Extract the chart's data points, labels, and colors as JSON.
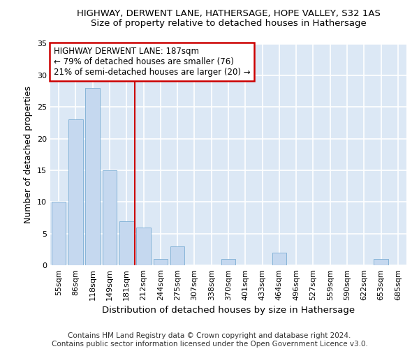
{
  "title": "HIGHWAY, DERWENT LANE, HATHERSAGE, HOPE VALLEY, S32 1AS",
  "subtitle": "Size of property relative to detached houses in Hathersage",
  "xlabel": "Distribution of detached houses by size in Hathersage",
  "ylabel": "Number of detached properties",
  "bar_labels": [
    "55sqm",
    "86sqm",
    "118sqm",
    "149sqm",
    "181sqm",
    "212sqm",
    "244sqm",
    "275sqm",
    "307sqm",
    "338sqm",
    "370sqm",
    "401sqm",
    "433sqm",
    "464sqm",
    "496sqm",
    "527sqm",
    "559sqm",
    "590sqm",
    "622sqm",
    "653sqm",
    "685sqm"
  ],
  "bar_values": [
    10,
    23,
    28,
    15,
    7,
    6,
    1,
    3,
    0,
    0,
    1,
    0,
    0,
    2,
    0,
    0,
    0,
    0,
    0,
    1,
    0
  ],
  "bar_color": "#c5d8ef",
  "bar_edge_color": "#7aadd4",
  "annotation_box_text": "HIGHWAY DERWENT LANE: 187sqm\n← 79% of detached houses are smaller (76)\n21% of semi-detached houses are larger (20) →",
  "annotation_box_color": "white",
  "annotation_box_edge_color": "#cc0000",
  "vline_color": "#cc0000",
  "vline_x": 4.5,
  "ylim": [
    0,
    35
  ],
  "yticks": [
    0,
    5,
    10,
    15,
    20,
    25,
    30,
    35
  ],
  "background_color": "#dce8f5",
  "grid_color": "white",
  "footer_line1": "Contains HM Land Registry data © Crown copyright and database right 2024.",
  "footer_line2": "Contains public sector information licensed under the Open Government Licence v3.0.",
  "title_fontsize": 9.5,
  "subtitle_fontsize": 9.5,
  "ylabel_fontsize": 9,
  "xlabel_fontsize": 9.5,
  "tick_fontsize": 8,
  "annotation_fontsize": 8.5,
  "footer_fontsize": 7.5
}
